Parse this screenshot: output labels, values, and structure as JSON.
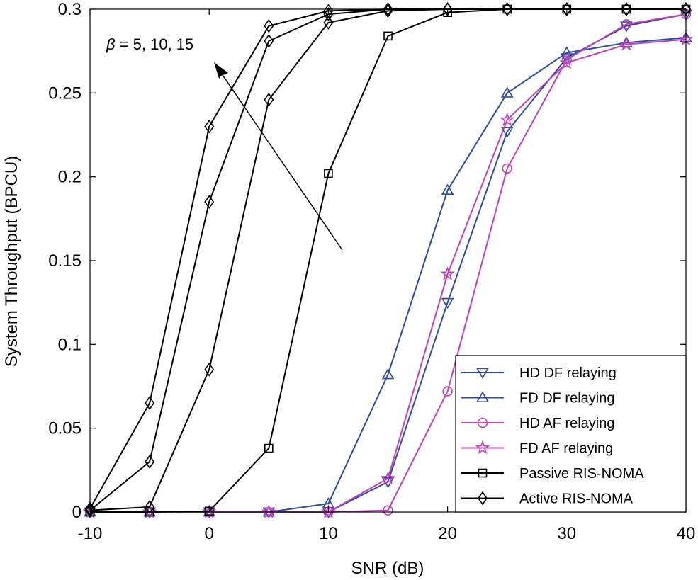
{
  "chart_data": {
    "type": "line",
    "xlabel": "SNR (dB)",
    "ylabel": "System Throughput (BPCU)",
    "xlim": [
      -10,
      40
    ],
    "ylim": [
      0,
      0.3
    ],
    "xticks": [
      -10,
      0,
      10,
      20,
      30,
      40
    ],
    "yticks": [
      0,
      0.05,
      0.1,
      0.15,
      0.2,
      0.25,
      0.3
    ],
    "xtick_labels": [
      "-10",
      "0",
      "10",
      "20",
      "30",
      "40"
    ],
    "ytick_labels": [
      "0",
      "0.05",
      "0.1",
      "0.15",
      "0.2",
      "0.25",
      "0.3"
    ],
    "grid": false,
    "legend_position": "bottom-right",
    "annotation": {
      "symbol": "β",
      "text": " = 5, 10, 15"
    },
    "series": [
      {
        "name": "HD DF relaying",
        "color": "#2e4ba0",
        "marker": "triangle-down",
        "x": [
          -10,
          -5,
          0,
          5,
          10,
          15,
          20,
          25,
          30,
          35,
          40
        ],
        "values": [
          0,
          0,
          0,
          0,
          0,
          0.018,
          0.125,
          0.227,
          0.271,
          0.29,
          0.297
        ]
      },
      {
        "name": "FD DF relaying",
        "color": "#2e4ba0",
        "marker": "triangle-up",
        "x": [
          -10,
          -5,
          0,
          5,
          10,
          15,
          20,
          25,
          30,
          35,
          40
        ],
        "values": [
          0,
          0,
          0,
          0,
          0.005,
          0.082,
          0.192,
          0.25,
          0.274,
          0.28,
          0.283
        ]
      },
      {
        "name": "HD AF relaying",
        "color": "#c040b8",
        "marker": "circle",
        "x": [
          -10,
          -5,
          0,
          5,
          10,
          15,
          20,
          25,
          30,
          35,
          40
        ],
        "values": [
          0,
          0,
          0,
          0,
          0,
          0.001,
          0.072,
          0.205,
          0.27,
          0.291,
          0.297
        ]
      },
      {
        "name": "FD AF relaying",
        "color": "#c040b8",
        "marker": "star",
        "x": [
          -10,
          -5,
          0,
          5,
          10,
          15,
          20,
          25,
          30,
          35,
          40
        ],
        "values": [
          0,
          0,
          0,
          0,
          0,
          0.02,
          0.142,
          0.234,
          0.268,
          0.279,
          0.282
        ]
      },
      {
        "name": "Passive RIS-NOMA",
        "color": "#000000",
        "marker": "square",
        "x": [
          -10,
          -5,
          0,
          5,
          10,
          15,
          20,
          25,
          30,
          35,
          40
        ],
        "values": [
          0,
          0,
          0.0005,
          0.038,
          0.202,
          0.284,
          0.298,
          0.3,
          0.3,
          0.3,
          0.3
        ]
      },
      {
        "name": "Active RIS-NOMA (β = 5)",
        "legend": false,
        "color": "#000000",
        "marker": "diamond",
        "x": [
          -10,
          -5,
          0,
          5,
          10,
          15,
          20,
          25,
          30,
          35,
          40
        ],
        "values": [
          0.001,
          0.003,
          0.085,
          0.246,
          0.292,
          0.299,
          0.3,
          0.3,
          0.3,
          0.3,
          0.3
        ]
      },
      {
        "name": "Active RIS-NOMA (β = 10)",
        "legend": false,
        "color": "#000000",
        "marker": "diamond",
        "x": [
          -10,
          -5,
          0,
          5,
          10,
          15,
          20,
          25,
          30,
          35,
          40
        ],
        "values": [
          0.001,
          0.03,
          0.185,
          0.281,
          0.297,
          0.3,
          0.3,
          0.3,
          0.3,
          0.3,
          0.3
        ]
      },
      {
        "name": "Active RIS-NOMA (β = 15)",
        "legend": false,
        "color": "#000000",
        "marker": "diamond",
        "x": [
          -10,
          -5,
          0,
          5,
          10,
          15,
          20,
          25,
          30,
          35,
          40
        ],
        "values": [
          0.002,
          0.065,
          0.23,
          0.29,
          0.299,
          0.3,
          0.3,
          0.3,
          0.3,
          0.3,
          0.3
        ]
      }
    ],
    "legend": [
      {
        "label": "HD DF relaying",
        "color": "#2e4ba0",
        "marker": "triangle-down"
      },
      {
        "label": "FD DF relaying",
        "color": "#2e4ba0",
        "marker": "triangle-up"
      },
      {
        "label": "HD AF relaying",
        "color": "#c040b8",
        "marker": "circle"
      },
      {
        "label": "FD AF relaying",
        "color": "#c040b8",
        "marker": "star"
      },
      {
        "label": "Passive RIS-NOMA",
        "color": "#000000",
        "marker": "square"
      },
      {
        "label": "Active RIS-NOMA",
        "color": "#000000",
        "marker": "diamond"
      }
    ]
  }
}
